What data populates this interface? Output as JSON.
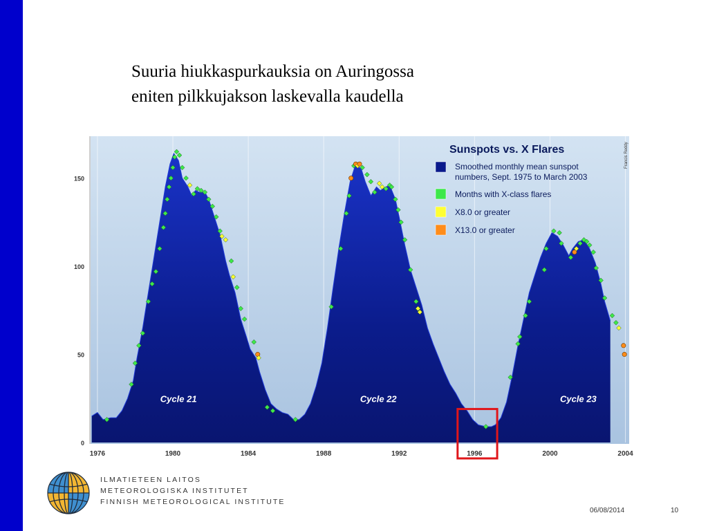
{
  "slide": {
    "title_line1": "Suuria hiukkaspurkauksia on Auringossa",
    "title_line2": "eniten pilkkujakson laskevalla kaudella",
    "footer_date": "06/08/2014",
    "page_number": "10",
    "institute_lines": [
      "ILMATIETEEN LAITOS",
      "METEOROLOGISKA INSTITUTET",
      "FINNISH METEOROLOGICAL INSTITUTE"
    ],
    "accent_color": "#0000cc"
  },
  "chart_data": {
    "type": "area",
    "title": "Sunspots vs. X Flares",
    "credit": "Francis Reddy",
    "series": [
      {
        "name": "Smoothed monthly mean sunspot numbers, Sept. 1975 to March 2003",
        "color": "#0a1a8c"
      }
    ],
    "legend": [
      {
        "label": "Smoothed monthly mean sunspot numbers, Sept. 1975 to March 2003",
        "color": "#0a1a8c"
      },
      {
        "label": "Months with X-class flares",
        "color": "#3ee84a"
      },
      {
        "label": "X8.0 or greater",
        "color": "#ffff33"
      },
      {
        "label": "X13.0 or greater",
        "color": "#ff8c1a"
      }
    ],
    "legend_position": "top-right",
    "xlim": [
      1975.6,
      2004.2
    ],
    "ylim": [
      0,
      170
    ],
    "x_ticks": [
      "1976",
      "1980",
      "1984",
      "1988",
      "1992",
      "1996",
      "2000",
      "2004"
    ],
    "y_ticks": [
      "0",
      "50",
      "100",
      "150"
    ],
    "cycle_labels": [
      {
        "text": "Cycle 21",
        "x": 1980.3
      },
      {
        "text": "Cycle 22",
        "x": 1990.9
      },
      {
        "text": "Cycle 23",
        "x": 2001.5
      }
    ],
    "curve": [
      [
        1975.7,
        15
      ],
      [
        1976.0,
        17
      ],
      [
        1976.3,
        13
      ],
      [
        1976.7,
        14
      ],
      [
        1977.0,
        14
      ],
      [
        1977.3,
        18
      ],
      [
        1977.6,
        25
      ],
      [
        1977.9,
        35
      ],
      [
        1978.1,
        48
      ],
      [
        1978.4,
        65
      ],
      [
        1978.7,
        85
      ],
      [
        1979.0,
        105
      ],
      [
        1979.3,
        125
      ],
      [
        1979.6,
        145
      ],
      [
        1979.85,
        158
      ],
      [
        1980.05,
        164
      ],
      [
        1980.3,
        160
      ],
      [
        1980.5,
        150
      ],
      [
        1980.8,
        145
      ],
      [
        1981.0,
        140
      ],
      [
        1981.2,
        143
      ],
      [
        1981.4,
        142
      ],
      [
        1981.7,
        142
      ],
      [
        1981.9,
        138
      ],
      [
        1982.2,
        128
      ],
      [
        1982.5,
        118
      ],
      [
        1982.8,
        103
      ],
      [
        1983.0,
        95
      ],
      [
        1983.3,
        85
      ],
      [
        1983.6,
        70
      ],
      [
        1983.9,
        60
      ],
      [
        1984.1,
        53
      ],
      [
        1984.4,
        48
      ],
      [
        1984.6,
        40
      ],
      [
        1984.9,
        30
      ],
      [
        1985.2,
        22
      ],
      [
        1985.5,
        19
      ],
      [
        1985.8,
        17
      ],
      [
        1986.1,
        16
      ],
      [
        1986.4,
        13
      ],
      [
        1986.7,
        13
      ],
      [
        1987.0,
        16
      ],
      [
        1987.3,
        22
      ],
      [
        1987.6,
        32
      ],
      [
        1987.9,
        45
      ],
      [
        1988.2,
        65
      ],
      [
        1988.5,
        88
      ],
      [
        1988.8,
        110
      ],
      [
        1989.1,
        130
      ],
      [
        1989.4,
        148
      ],
      [
        1989.7,
        158
      ],
      [
        1990.0,
        155
      ],
      [
        1990.2,
        148
      ],
      [
        1990.5,
        140
      ],
      [
        1990.8,
        145
      ],
      [
        1991.0,
        143
      ],
      [
        1991.3,
        145
      ],
      [
        1991.5,
        146
      ],
      [
        1991.8,
        138
      ],
      [
        1992.0,
        128
      ],
      [
        1992.3,
        112
      ],
      [
        1992.6,
        98
      ],
      [
        1992.9,
        88
      ],
      [
        1993.2,
        78
      ],
      [
        1993.5,
        65
      ],
      [
        1993.8,
        56
      ],
      [
        1994.1,
        48
      ],
      [
        1994.4,
        40
      ],
      [
        1994.7,
        33
      ],
      [
        1995.0,
        28
      ],
      [
        1995.3,
        22
      ],
      [
        1995.6,
        18
      ],
      [
        1995.9,
        13
      ],
      [
        1996.2,
        10
      ],
      [
        1996.6,
        9
      ],
      [
        1996.9,
        9
      ],
      [
        1997.1,
        10
      ],
      [
        1997.4,
        14
      ],
      [
        1997.7,
        23
      ],
      [
        1998.0,
        38
      ],
      [
        1998.3,
        55
      ],
      [
        1998.6,
        70
      ],
      [
        1998.9,
        85
      ],
      [
        1999.2,
        95
      ],
      [
        1999.5,
        105
      ],
      [
        1999.8,
        113
      ],
      [
        2000.1,
        119
      ],
      [
        2000.4,
        117
      ],
      [
        2000.7,
        112
      ],
      [
        2001.0,
        106
      ],
      [
        2001.2,
        110
      ],
      [
        2001.5,
        114
      ],
      [
        2001.8,
        115
      ],
      [
        2002.1,
        110
      ],
      [
        2002.4,
        102
      ],
      [
        2002.7,
        90
      ],
      [
        2002.9,
        80
      ],
      [
        2003.2,
        69
      ]
    ],
    "flares": [
      [
        1976.5,
        13,
        "g"
      ],
      [
        1977.8,
        33,
        "g"
      ],
      [
        1978.0,
        45,
        "g"
      ],
      [
        1978.2,
        55,
        "g"
      ],
      [
        1978.4,
        62,
        "g"
      ],
      [
        1978.7,
        80,
        "g"
      ],
      [
        1978.9,
        90,
        "g"
      ],
      [
        1979.1,
        97,
        "g"
      ],
      [
        1979.3,
        110,
        "g"
      ],
      [
        1979.5,
        122,
        "g"
      ],
      [
        1979.6,
        130,
        "g"
      ],
      [
        1979.7,
        138,
        "g"
      ],
      [
        1979.8,
        145,
        "g"
      ],
      [
        1979.9,
        150,
        "g"
      ],
      [
        1980.0,
        156,
        "g"
      ],
      [
        1980.1,
        162,
        "g"
      ],
      [
        1980.2,
        165,
        "g"
      ],
      [
        1980.35,
        163,
        "g"
      ],
      [
        1980.5,
        156,
        "g"
      ],
      [
        1980.7,
        150,
        "g"
      ],
      [
        1980.9,
        146,
        "y"
      ],
      [
        1981.1,
        141,
        "g"
      ],
      [
        1981.3,
        144,
        "g"
      ],
      [
        1981.5,
        143,
        "g"
      ],
      [
        1981.7,
        142,
        "g"
      ],
      [
        1981.9,
        138,
        "g"
      ],
      [
        1982.1,
        134,
        "g"
      ],
      [
        1982.3,
        128,
        "g"
      ],
      [
        1982.5,
        120,
        "g"
      ],
      [
        1982.6,
        117,
        "y"
      ],
      [
        1982.8,
        115,
        "y"
      ],
      [
        1983.1,
        103,
        "g"
      ],
      [
        1983.2,
        94,
        "y"
      ],
      [
        1983.4,
        88,
        "g"
      ],
      [
        1983.6,
        76,
        "g"
      ],
      [
        1983.8,
        70,
        "g"
      ],
      [
        1984.3,
        57,
        "g"
      ],
      [
        1984.5,
        50,
        "o"
      ],
      [
        1984.55,
        48,
        "y"
      ],
      [
        1985.0,
        20,
        "g"
      ],
      [
        1985.3,
        18,
        "g"
      ],
      [
        1986.5,
        13,
        "g"
      ],
      [
        1988.4,
        77,
        "g"
      ],
      [
        1988.9,
        110,
        "g"
      ],
      [
        1989.2,
        130,
        "g"
      ],
      [
        1989.35,
        140,
        "g"
      ],
      [
        1989.45,
        150,
        "o"
      ],
      [
        1989.6,
        157,
        "g"
      ],
      [
        1989.7,
        158,
        "o"
      ],
      [
        1989.8,
        157,
        "y"
      ],
      [
        1989.9,
        158,
        "o"
      ],
      [
        1990.05,
        156,
        "g"
      ],
      [
        1990.3,
        152,
        "g"
      ],
      [
        1990.5,
        148,
        "g"
      ],
      [
        1990.7,
        142,
        "g"
      ],
      [
        1990.95,
        147,
        "y"
      ],
      [
        1991.1,
        145,
        "y"
      ],
      [
        1991.3,
        144,
        "g"
      ],
      [
        1991.5,
        146,
        "g"
      ],
      [
        1991.6,
        145,
        "g"
      ],
      [
        1991.8,
        138,
        "g"
      ],
      [
        1991.95,
        132,
        "g"
      ],
      [
        1992.1,
        125,
        "g"
      ],
      [
        1992.3,
        115,
        "g"
      ],
      [
        1992.6,
        98,
        "g"
      ],
      [
        1992.9,
        80,
        "g"
      ],
      [
        1993.0,
        76,
        "y"
      ],
      [
        1993.1,
        74,
        "y"
      ],
      [
        1996.6,
        9,
        "g"
      ],
      [
        1997.9,
        37,
        "g"
      ],
      [
        1998.3,
        56,
        "g"
      ],
      [
        1998.4,
        60,
        "g"
      ],
      [
        1998.7,
        72,
        "g"
      ],
      [
        1998.9,
        80,
        "g"
      ],
      [
        1999.7,
        98,
        "g"
      ],
      [
        1999.8,
        110,
        "g"
      ],
      [
        2000.2,
        120,
        "g"
      ],
      [
        2000.5,
        119,
        "g"
      ],
      [
        2000.6,
        113,
        "g"
      ],
      [
        2001.1,
        105,
        "g"
      ],
      [
        2001.3,
        108,
        "o"
      ],
      [
        2001.4,
        110,
        "y"
      ],
      [
        2001.6,
        113,
        "g"
      ],
      [
        2001.8,
        115,
        "g"
      ],
      [
        2001.95,
        114,
        "g"
      ],
      [
        2002.1,
        112,
        "g"
      ],
      [
        2002.3,
        108,
        "g"
      ],
      [
        2002.45,
        99,
        "g"
      ],
      [
        2002.7,
        92,
        "g"
      ],
      [
        2002.9,
        82,
        "g"
      ],
      [
        2003.3,
        72,
        "g"
      ],
      [
        2003.5,
        68,
        "g"
      ],
      [
        2003.65,
        65,
        "y"
      ],
      [
        2003.9,
        55,
        "o"
      ],
      [
        2003.95,
        50,
        "o"
      ]
    ],
    "highlight_box": {
      "x_from": 1995.1,
      "x_to": 1997.2,
      "y_from": 0,
      "y_to": 19,
      "color": "#e0161a"
    }
  }
}
